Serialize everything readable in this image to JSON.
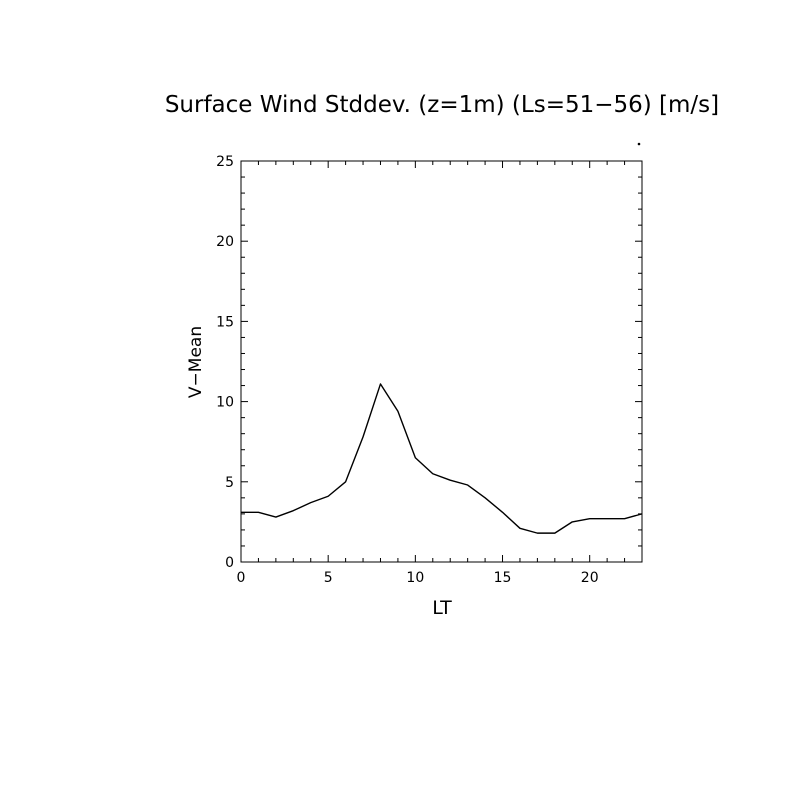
{
  "chart_data": {
    "type": "line",
    "title": "Surface Wind Stddev. (z=1m) (Ls=51−56) [m/s]",
    "xlabel": "LT",
    "ylabel": "V−Mean",
    "xlim": [
      0,
      23
    ],
    "ylim": [
      0,
      25
    ],
    "x_ticks": [
      0,
      5,
      10,
      15,
      20
    ],
    "y_ticks": [
      0,
      5,
      10,
      15,
      20,
      25
    ],
    "x_tick_labels": [
      "0",
      "5",
      "10",
      "15",
      "20"
    ],
    "y_tick_labels": [
      "0",
      "5",
      "10",
      "15",
      "20",
      "25"
    ],
    "grid": false,
    "series": [
      {
        "x": [
          0,
          1,
          2,
          3,
          4,
          5,
          6,
          7,
          8,
          9,
          10,
          11,
          12,
          13,
          14,
          15,
          16,
          17,
          18,
          19,
          20,
          21,
          22,
          23
        ],
        "values": [
          3.1,
          3.1,
          2.8,
          3.2,
          3.7,
          4.1,
          5.0,
          7.8,
          11.1,
          9.4,
          6.5,
          5.5,
          5.1,
          4.8,
          4.0,
          3.1,
          2.1,
          1.8,
          1.8,
          2.5,
          2.7,
          2.7,
          2.7,
          3.0
        ],
        "color": "#000000"
      }
    ]
  }
}
